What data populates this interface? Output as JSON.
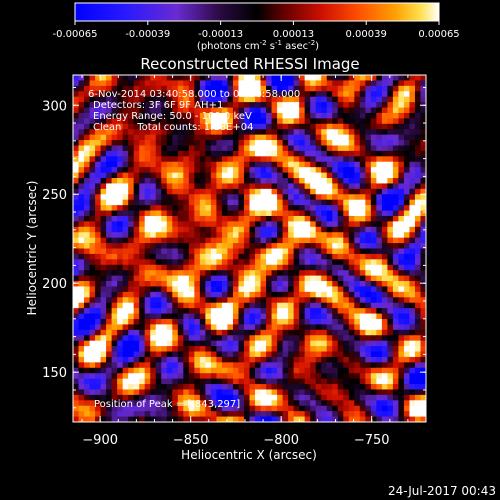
{
  "chart_data": {
    "type": "heatmap",
    "title": "Reconstructed RHESSI Image",
    "xlabel": "Heliocentric X (arcsec)",
    "ylabel": "Heliocentric Y (arcsec)",
    "xlim": [
      -915,
      -720
    ],
    "ylim": [
      122,
      317
    ],
    "x_ticks": [
      -900,
      -850,
      -800,
      -750
    ],
    "y_ticks": [
      150,
      200,
      250,
      300
    ],
    "colorbar": {
      "range": [
        -0.00065,
        0.00065
      ],
      "ticks": [
        "-0.00065",
        "-0.00039",
        "-0.00013",
        "0.00013",
        "0.00039",
        "0.00065"
      ],
      "unit_prefix": "(photons cm",
      "unit_exp1": "-2",
      "unit_mid1": " s",
      "unit_exp2": "-1",
      "unit_mid2": " asec",
      "unit_exp3": "-2",
      "unit_suffix": ")",
      "colormap": "rhessi"
    },
    "annotations": [
      "6-Nov-2014 03:40:58.000 to 03:50:58.000",
      "Detectors: 3F 6F 9F AH+1",
      "Energy Range: 50.0 - 100.0 keV",
      "Clean     Total counts: 1.18E+04"
    ],
    "peak_label": "Position of Peak = [-843,297]",
    "grid": false
  },
  "footer": {
    "timestamp": "24-Jul-2017 00:43"
  }
}
